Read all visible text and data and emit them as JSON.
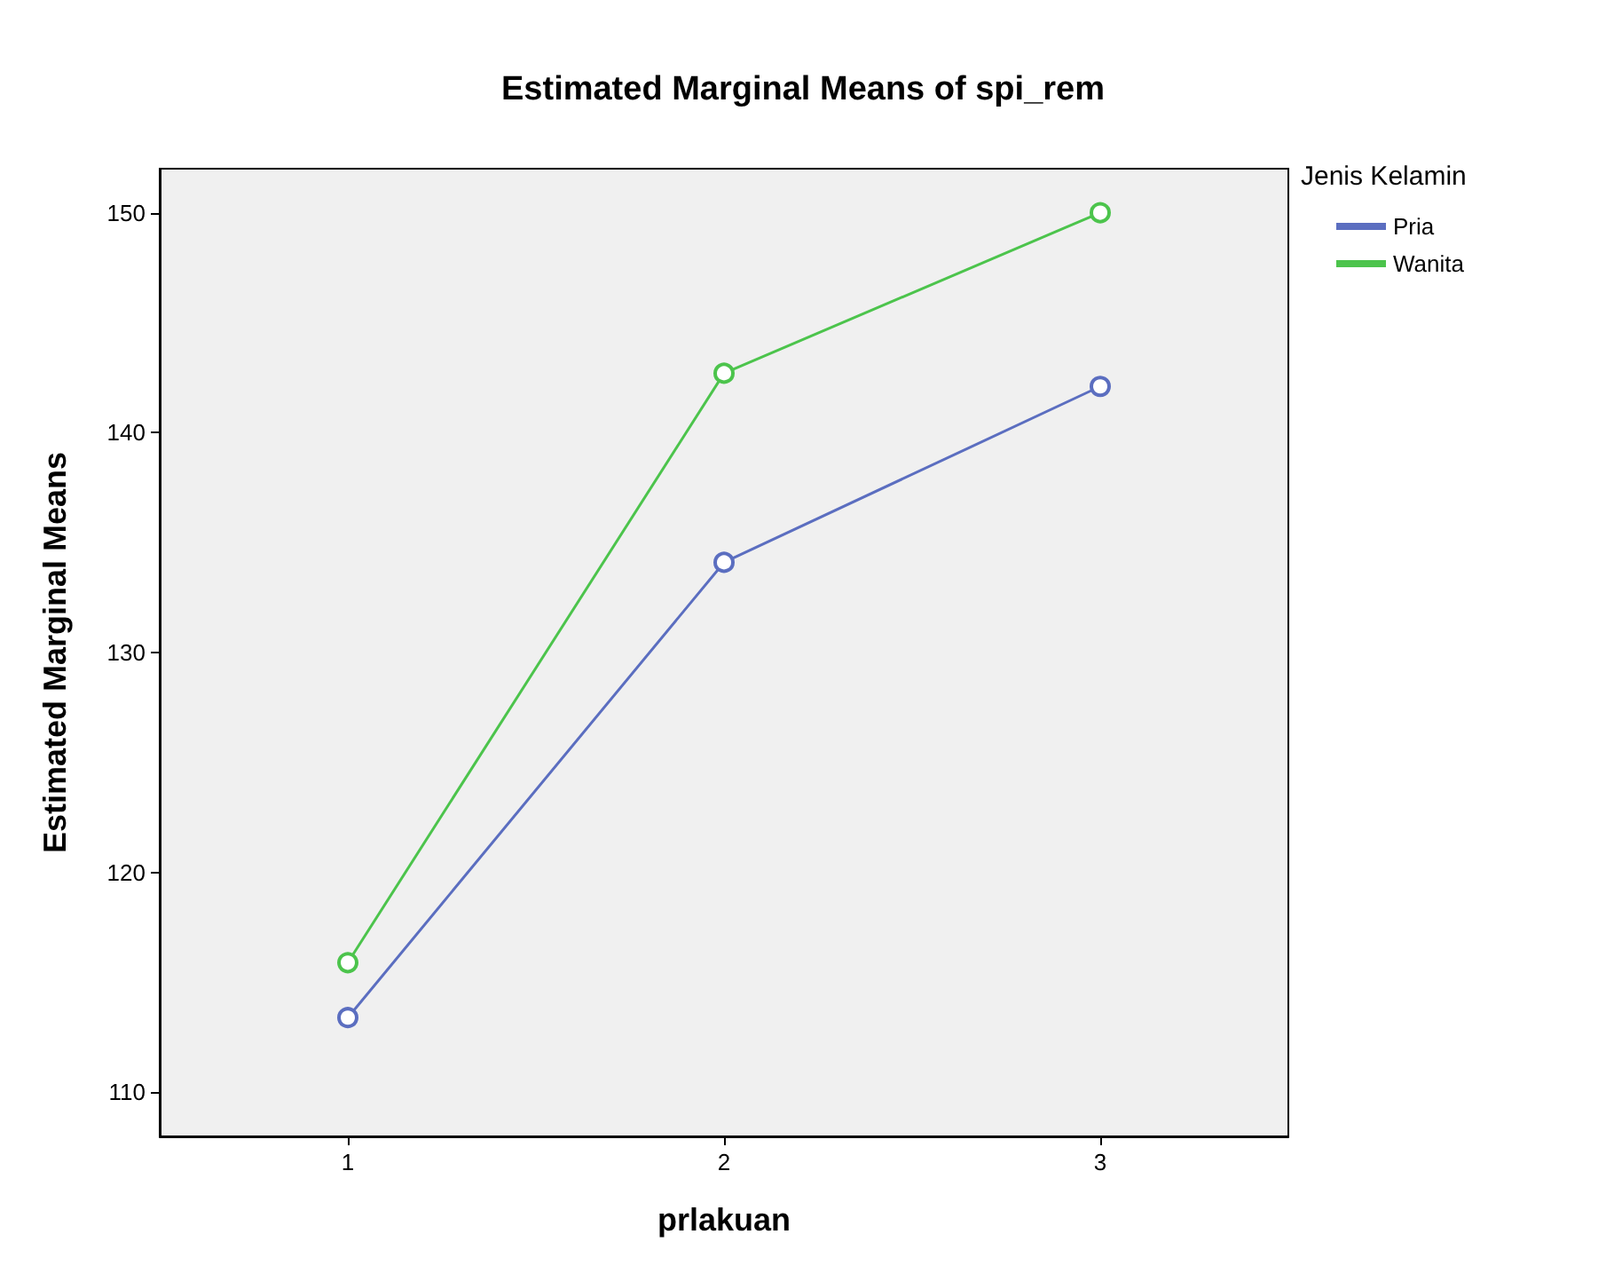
{
  "chart_data": {
    "type": "line",
    "title": "Estimated Marginal Means of spi_rem",
    "xlabel": "prlakuan",
    "ylabel": "Estimated Marginal Means",
    "legend_title": "Jenis Kelamin",
    "categories": [
      "1",
      "2",
      "3"
    ],
    "series": [
      {
        "name": "Pria",
        "color": "#5b6ec0",
        "values": [
          113.4,
          134.1,
          142.1
        ]
      },
      {
        "name": "Wanita",
        "color": "#4cc44c",
        "values": [
          115.9,
          142.7,
          150.0
        ]
      }
    ],
    "ylim": [
      108,
      152
    ],
    "yticks": [
      110,
      120,
      130,
      140,
      150
    ],
    "grid": false,
    "legend": "right",
    "marker": "circle",
    "line_style": "solid"
  }
}
